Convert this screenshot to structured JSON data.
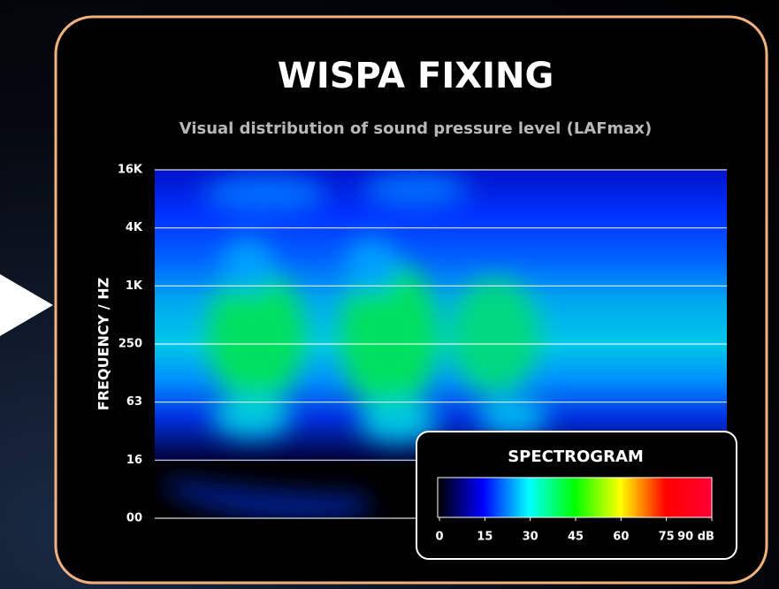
{
  "chart_data": {
    "type": "spectrogram",
    "title": "WISPA FIXING",
    "subtitle": "Visual distribution of sound pressure level (LAFmax)",
    "y_label": "FREQUENCY / HZ",
    "y_categories": [
      "00",
      "16",
      "63",
      "250",
      "1K",
      "4K",
      "16K"
    ],
    "grid": true,
    "colorbar": {
      "title": "SPECTROGRAM",
      "clim": [
        0,
        90
      ],
      "colors": [
        "#000000",
        "#0000ff",
        "#00ffff",
        "#00ff00",
        "#ffff00",
        "#ff0000",
        "#ff0033"
      ],
      "ticks": [
        0,
        15,
        30,
        45,
        60,
        75,
        {
          "value": 90,
          "label": "90 dB"
        }
      ]
    }
  }
}
